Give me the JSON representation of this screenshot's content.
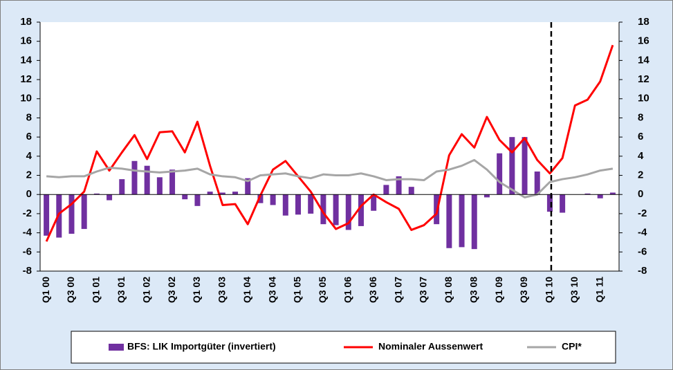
{
  "chart_data": {
    "type": "bar_line",
    "categories": [
      "Q1 00",
      null,
      "Q3 00",
      null,
      "Q1 01",
      null,
      "Q3 01",
      null,
      "Q1 02",
      null,
      "Q3 02",
      null,
      "Q1 03",
      null,
      "Q3 03",
      null,
      "Q1 04",
      null,
      "Q3 04",
      null,
      "Q1 05",
      null,
      "Q3 05",
      null,
      "Q1 06",
      null,
      "Q3 06",
      null,
      "Q1 07",
      null,
      "Q3 07",
      null,
      "Q1 08",
      null,
      "Q3 08",
      null,
      "Q1 09",
      null,
      "Q3 09",
      null,
      "Q1 10",
      null,
      "Q3 10",
      null,
      "Q1 11",
      null
    ],
    "series": [
      {
        "name": "BFS: LIK Importgüter (invertiert)",
        "type": "bar",
        "color": "#7030a0",
        "values": [
          -4.3,
          -4.5,
          -4.1,
          -3.6,
          0.1,
          -0.6,
          1.6,
          3.5,
          3.0,
          1.8,
          2.6,
          -0.5,
          -1.2,
          0.3,
          0.2,
          0.3,
          1.7,
          -0.9,
          -1.1,
          -2.2,
          -2.1,
          -2.0,
          -3.1,
          -3.2,
          -3.7,
          -3.3,
          -1.7,
          1.0,
          1.9,
          0.8,
          0,
          -3.1,
          -5.6,
          -5.5,
          -5.7,
          -0.3,
          4.3,
          6.0,
          6.0,
          2.4,
          -1.8,
          -1.9,
          0,
          0.1,
          -0.4,
          0.2
        ]
      },
      {
        "name": "Nominaler Aussenwert",
        "type": "line",
        "color": "#ff0000",
        "values": [
          -4.9,
          -2.0,
          -1.0,
          0.3,
          4.5,
          2.5,
          4.4,
          6.2,
          3.7,
          6.5,
          6.6,
          4.4,
          7.6,
          3.0,
          -1.1,
          -1.0,
          -3.1,
          -0.1,
          2.6,
          3.5,
          1.9,
          0.3,
          -1.9,
          -3.6,
          -3.0,
          -1.2,
          0,
          -0.8,
          -1.5,
          -3.7,
          -3.2,
          -2.0,
          4.1,
          6.3,
          4.9,
          8.1,
          5.7,
          4.4,
          5.9,
          3.6,
          2.2,
          3.8,
          9.3,
          9.9,
          11.8,
          15.6
        ]
      },
      {
        "name": "CPI*",
        "type": "line",
        "color": "#a6a6a6",
        "values": [
          1.9,
          1.8,
          1.9,
          1.9,
          2.4,
          2.8,
          2.7,
          2.5,
          2.4,
          2.3,
          2.4,
          2.5,
          2.7,
          2.1,
          1.9,
          1.8,
          1.4,
          2.0,
          2.1,
          2.2,
          1.9,
          1.7,
          2.1,
          2.0,
          2.0,
          2.2,
          1.9,
          1.5,
          1.6,
          1.6,
          1.5,
          2.4,
          2.6,
          3.0,
          3.6,
          2.6,
          1.3,
          0.5,
          -0.3,
          0,
          1.3,
          1.6,
          1.8,
          2.1,
          2.5,
          2.7
        ]
      }
    ],
    "ylim": [
      -8,
      18
    ],
    "yticks": [
      -8,
      -6,
      -4,
      -2,
      0,
      2,
      4,
      6,
      8,
      10,
      12,
      14,
      16,
      18
    ],
    "y2lim": [
      -8,
      18
    ],
    "y2ticks": [
      -8,
      -6,
      -4,
      -2,
      0,
      2,
      4,
      6,
      8,
      10,
      12,
      14,
      16,
      18
    ],
    "grid": false,
    "legend": "bottom"
  }
}
